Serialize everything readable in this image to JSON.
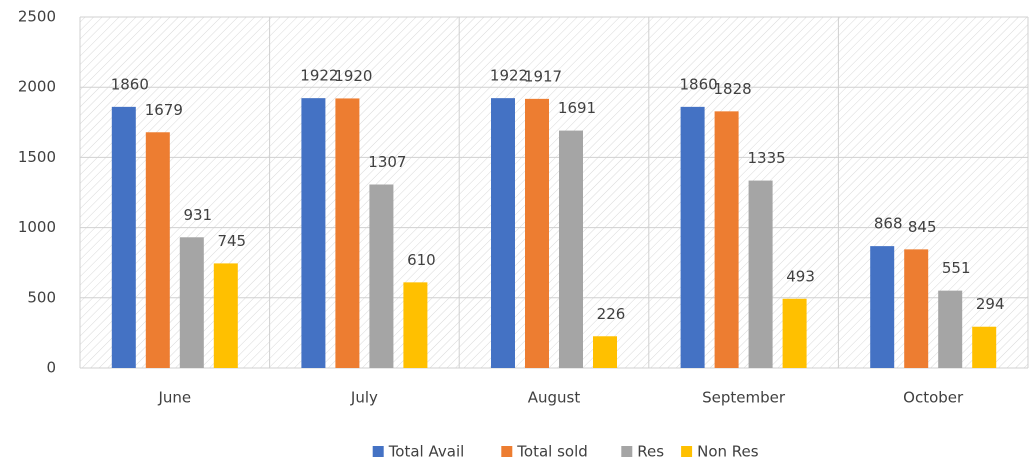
{
  "chart_data": {
    "type": "bar",
    "categories": [
      "June",
      "July",
      "August",
      "September",
      "October"
    ],
    "series": [
      {
        "name": "Total Avail",
        "color": "#4472c4",
        "values": [
          1860,
          1922,
          1922,
          1860,
          868
        ]
      },
      {
        "name": "Total sold",
        "color": "#ed7d31",
        "values": [
          1679,
          1920,
          1917,
          1828,
          845
        ]
      },
      {
        "name": "Res",
        "color": "#a5a5a5",
        "values": [
          931,
          1307,
          1691,
          1335,
          551
        ]
      },
      {
        "name": "Non Res",
        "color": "#ffc000",
        "values": [
          745,
          610,
          226,
          493,
          294
        ]
      }
    ],
    "ylim": [
      0,
      2500
    ],
    "yticks": [
      0,
      500,
      1000,
      1500,
      2000,
      2500
    ],
    "grid": true,
    "legend": "bottom"
  }
}
